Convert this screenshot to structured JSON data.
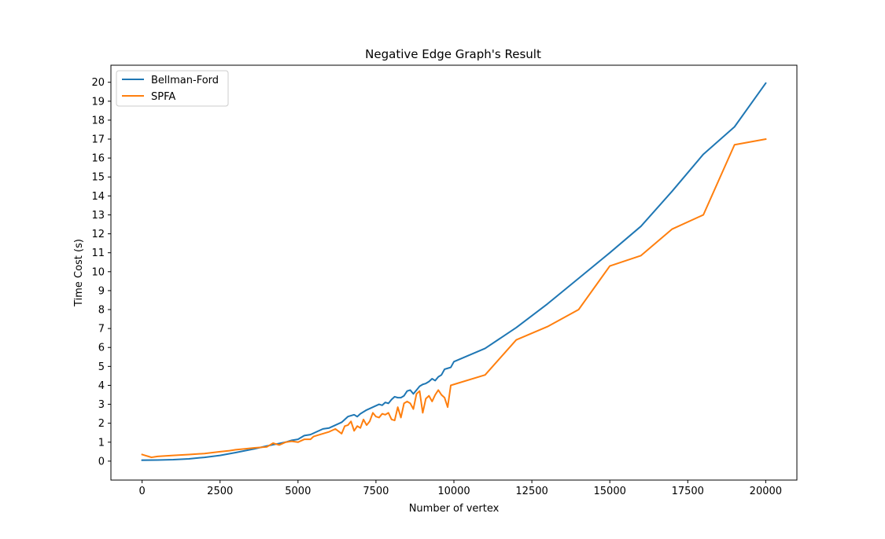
{
  "chart_data": {
    "type": "line",
    "title": "Negative Edge Graph's Result",
    "xlabel": "Number of vertex",
    "ylabel": "Time Cost (s)",
    "xlim": [
      -1000,
      21000
    ],
    "ylim": [
      -1.0,
      20.9
    ],
    "x_ticks": [
      0,
      2500,
      5000,
      7500,
      10000,
      12500,
      15000,
      17500,
      20000
    ],
    "x_tick_labels": [
      "0",
      "2500",
      "5000",
      "7500",
      "10000",
      "12500",
      "15000",
      "17500",
      "20000"
    ],
    "y_ticks": [
      0,
      1,
      2,
      3,
      4,
      5,
      6,
      7,
      8,
      9,
      10,
      11,
      12,
      13,
      14,
      15,
      16,
      17,
      18,
      19,
      20
    ],
    "y_tick_labels": [
      "0",
      "1",
      "2",
      "3",
      "4",
      "5",
      "6",
      "7",
      "8",
      "9",
      "10",
      "11",
      "12",
      "13",
      "14",
      "15",
      "16",
      "17",
      "18",
      "19",
      "20"
    ],
    "grid": false,
    "legend": {
      "position": "upper left"
    },
    "series": [
      {
        "name": "Bellman-Ford",
        "color": "#1f77b4",
        "x": [
          0,
          500,
          1000,
          1500,
          2000,
          2500,
          3000,
          3300,
          3600,
          4000,
          4300,
          4600,
          4800,
          5000,
          5200,
          5400,
          5600,
          5800,
          6000,
          6200,
          6400,
          6600,
          6800,
          6900,
          7000,
          7200,
          7400,
          7600,
          7700,
          7800,
          7900,
          8000,
          8100,
          8200,
          8300,
          8400,
          8500,
          8600,
          8700,
          8800,
          8900,
          9000,
          9100,
          9200,
          9300,
          9400,
          9500,
          9600,
          9700,
          9800,
          9900,
          10000,
          11000,
          12000,
          13000,
          14000,
          15000,
          16000,
          17000,
          18000,
          19000,
          20000
        ],
        "y": [
          0.05,
          0.06,
          0.08,
          0.12,
          0.2,
          0.3,
          0.45,
          0.55,
          0.65,
          0.8,
          0.9,
          1.0,
          1.1,
          1.15,
          1.35,
          1.4,
          1.55,
          1.7,
          1.75,
          1.9,
          2.05,
          2.35,
          2.45,
          2.35,
          2.5,
          2.7,
          2.85,
          3.0,
          2.95,
          3.1,
          3.05,
          3.25,
          3.4,
          3.35,
          3.35,
          3.45,
          3.7,
          3.75,
          3.55,
          3.75,
          3.95,
          4.05,
          4.1,
          4.2,
          4.35,
          4.25,
          4.45,
          4.55,
          4.85,
          4.9,
          4.95,
          5.25,
          5.95,
          7.05,
          8.3,
          9.65,
          11.0,
          12.4,
          14.25,
          16.2,
          17.65,
          19.95
        ]
      },
      {
        "name": "SPFA",
        "color": "#ff7f0e",
        "x": [
          0,
          100,
          200,
          300,
          500,
          800,
          1000,
          1500,
          2000,
          2500,
          2800,
          3000,
          3300,
          3600,
          4000,
          4200,
          4400,
          4600,
          4800,
          5000,
          5200,
          5400,
          5500,
          5600,
          5800,
          6000,
          6200,
          6400,
          6500,
          6600,
          6700,
          6800,
          6900,
          7000,
          7100,
          7200,
          7300,
          7400,
          7500,
          7600,
          7700,
          7800,
          7900,
          8000,
          8100,
          8200,
          8300,
          8400,
          8500,
          8600,
          8700,
          8800,
          8900,
          9000,
          9100,
          9200,
          9300,
          9400,
          9500,
          9600,
          9700,
          9800,
          9900,
          10000,
          11000,
          12000,
          13000,
          14000,
          15000,
          16000,
          17000,
          18000,
          19000,
          20000
        ],
        "y": [
          0.35,
          0.3,
          0.25,
          0.2,
          0.25,
          0.28,
          0.3,
          0.35,
          0.4,
          0.5,
          0.55,
          0.6,
          0.65,
          0.7,
          0.75,
          0.95,
          0.85,
          1.0,
          1.05,
          1.0,
          1.15,
          1.15,
          1.3,
          1.35,
          1.45,
          1.55,
          1.7,
          1.45,
          1.85,
          1.9,
          2.1,
          1.6,
          1.85,
          1.75,
          2.2,
          1.9,
          2.1,
          2.55,
          2.35,
          2.3,
          2.5,
          2.45,
          2.55,
          2.2,
          2.15,
          2.85,
          2.3,
          3.05,
          3.15,
          3.05,
          2.75,
          3.55,
          3.7,
          2.55,
          3.3,
          3.45,
          3.15,
          3.5,
          3.75,
          3.5,
          3.35,
          2.85,
          4.0,
          4.05,
          4.55,
          6.4,
          7.1,
          8.0,
          10.3,
          10.85,
          12.25,
          13.0,
          16.7,
          17.0
        ]
      }
    ]
  }
}
